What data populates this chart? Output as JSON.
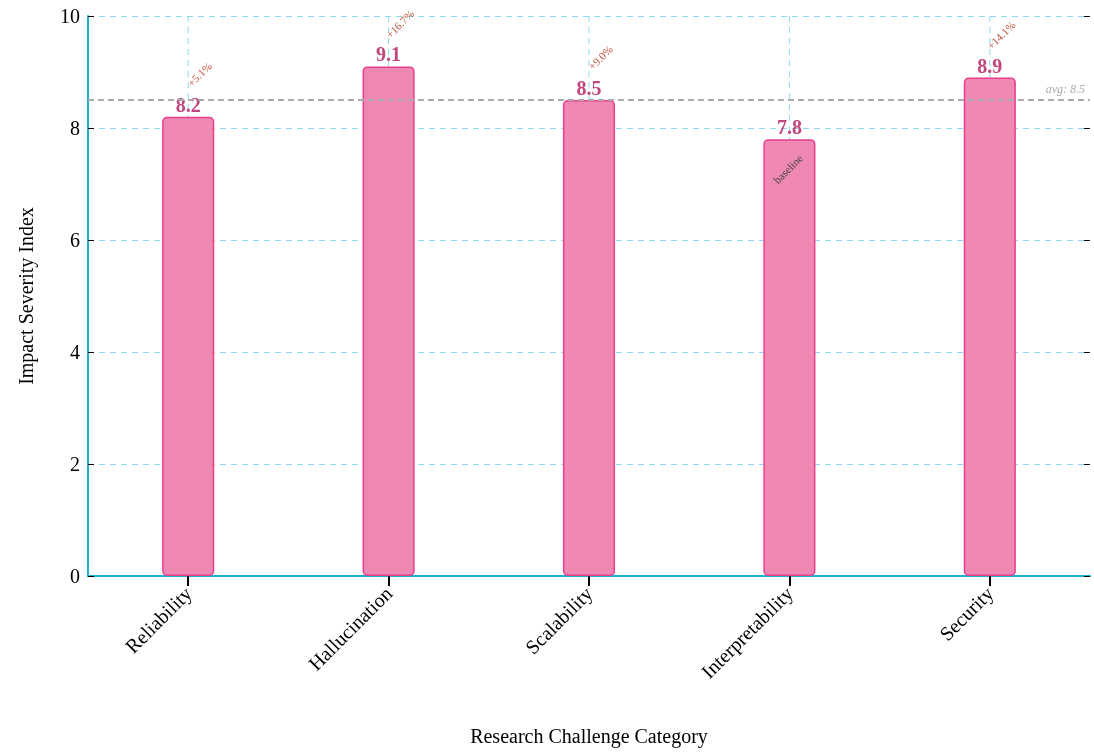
{
  "chart_data": {
    "type": "bar",
    "xlabel": "Research Challenge Category",
    "ylabel": "Impact Severity Index",
    "categories": [
      "Reliability",
      "Hallucination",
      "Scalability",
      "Interpretability",
      "Security"
    ],
    "values": [
      8.2,
      9.1,
      8.5,
      7.8,
      8.9
    ],
    "color": "#f088b4",
    "data_labels": true,
    "ylim": [
      0,
      10
    ],
    "yticks": [
      0,
      2,
      4,
      6,
      8,
      10
    ],
    "grid": true,
    "ref_lines": [
      {
        "axis": "y",
        "value": 8.5,
        "label": "avg: 8.5",
        "color": "#aaaaaa",
        "line_style": "dashed"
      }
    ],
    "annotations": [
      {
        "text": "+5.1%",
        "x": "Reliability",
        "y": 8.2
      },
      {
        "text": "+16.7%",
        "x": "Hallucination",
        "y": 9.1
      },
      {
        "text": "+9.0%",
        "x": "Scalability",
        "y": 8.5
      },
      {
        "text": "baseline",
        "x": "Interpretability",
        "y": 7.8
      },
      {
        "text": "+14.1%",
        "x": "Security",
        "y": 8.9
      }
    ]
  }
}
